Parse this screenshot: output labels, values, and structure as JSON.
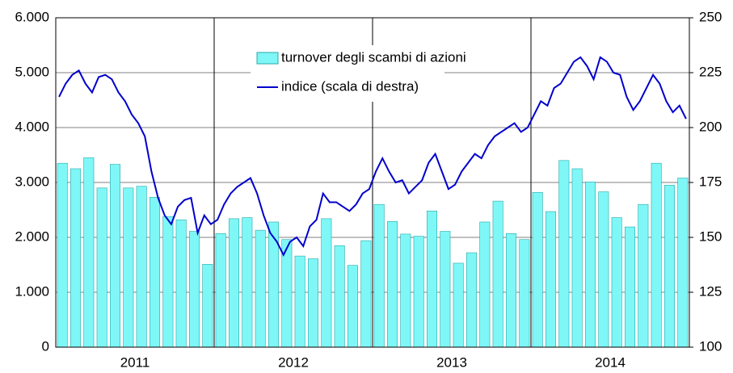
{
  "chart_data": {
    "type": "bar-line",
    "groups": [
      "2011",
      "2012",
      "2013",
      "2014"
    ],
    "series": [
      {
        "name": "turnover degli scambi di azioni",
        "type": "bar",
        "color": "#7ff7f7",
        "values": [
          3350,
          3250,
          3450,
          2900,
          3330,
          2900,
          2930,
          2730,
          2380,
          2320,
          2110,
          1510,
          2070,
          2340,
          2360,
          2130,
          2280,
          1960,
          1660,
          1610,
          2340,
          1850,
          1490,
          1940,
          2600,
          2290,
          2060,
          2020,
          2480,
          2110,
          1530,
          1720,
          2280,
          2660,
          2070,
          1960,
          2820,
          2470,
          3400,
          3250,
          3010,
          2830,
          2360,
          2190,
          2600,
          3350,
          2950,
          3080
        ]
      },
      {
        "name": "indice (scala di destra)",
        "type": "line",
        "axis": "y2",
        "color": "#0000cc",
        "values": [
          214,
          220,
          224,
          226,
          220,
          216,
          223,
          224,
          222,
          216,
          212,
          206,
          202,
          196,
          180,
          168,
          160,
          156,
          164,
          167,
          168,
          152,
          160,
          156,
          158,
          165,
          170,
          173,
          175,
          177,
          170,
          160,
          152,
          148,
          142,
          148,
          150,
          146,
          155,
          158,
          170,
          166,
          166,
          164,
          162,
          165,
          170,
          172,
          180,
          186,
          180,
          175,
          176,
          170,
          173,
          176,
          184,
          188,
          180,
          172,
          174,
          180,
          184,
          188,
          186,
          192,
          196,
          198,
          200,
          202,
          198,
          200,
          206,
          212,
          210,
          218,
          220,
          225,
          230,
          232,
          228,
          222,
          232,
          230,
          225,
          224,
          214,
          208,
          212,
          218,
          224,
          220,
          212,
          207,
          210,
          204
        ]
      }
    ],
    "ylim": [
      0,
      6000
    ],
    "yticks": [
      {
        "value": 0,
        "label": "0"
      },
      {
        "value": 1000,
        "label": "1.000"
      },
      {
        "value": 2000,
        "label": "2.000"
      },
      {
        "value": 3000,
        "label": "3.000"
      },
      {
        "value": 4000,
        "label": "4.000"
      },
      {
        "value": 5000,
        "label": "5.000"
      },
      {
        "value": 6000,
        "label": "6.000"
      }
    ],
    "y2lim": [
      100,
      250
    ],
    "y2ticks": [
      100,
      125,
      150,
      175,
      200,
      225,
      250
    ],
    "grid": true
  }
}
